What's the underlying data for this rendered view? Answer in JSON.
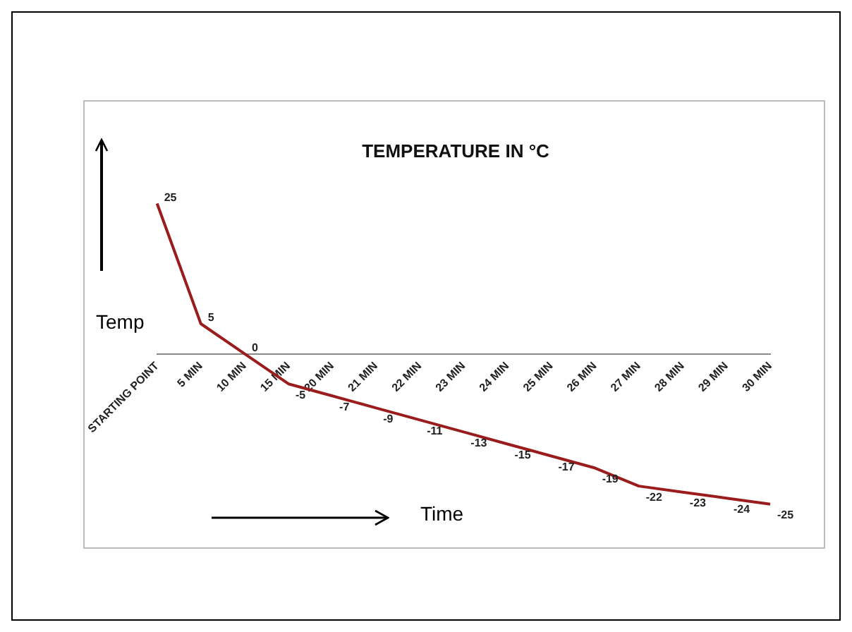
{
  "chart_data": {
    "type": "line",
    "title": "TEMPERATURE IN °C",
    "categories": [
      "STARTING POINT",
      "5 MIN",
      "10 MIN",
      "15 MIN",
      "20 MIN",
      "21 MIN",
      "22 MIN",
      "23 MIN",
      "24 MIN",
      "25 MIN",
      "26 MIN",
      "27 MIN",
      "28 MIN",
      "29 MIN",
      "30 MIN"
    ],
    "series": [
      {
        "color": "#9b1c1c",
        "values": [
          25,
          5,
          0,
          -5,
          -7,
          -9,
          -11,
          -13,
          -15,
          -17,
          -19,
          -22,
          -23,
          -24,
          -25
        ]
      }
    ],
    "data_labels": true,
    "grid": false,
    "legend": false,
    "marker": "none",
    "line_style": "solid",
    "annotations": [
      "Temp",
      "Time"
    ]
  }
}
